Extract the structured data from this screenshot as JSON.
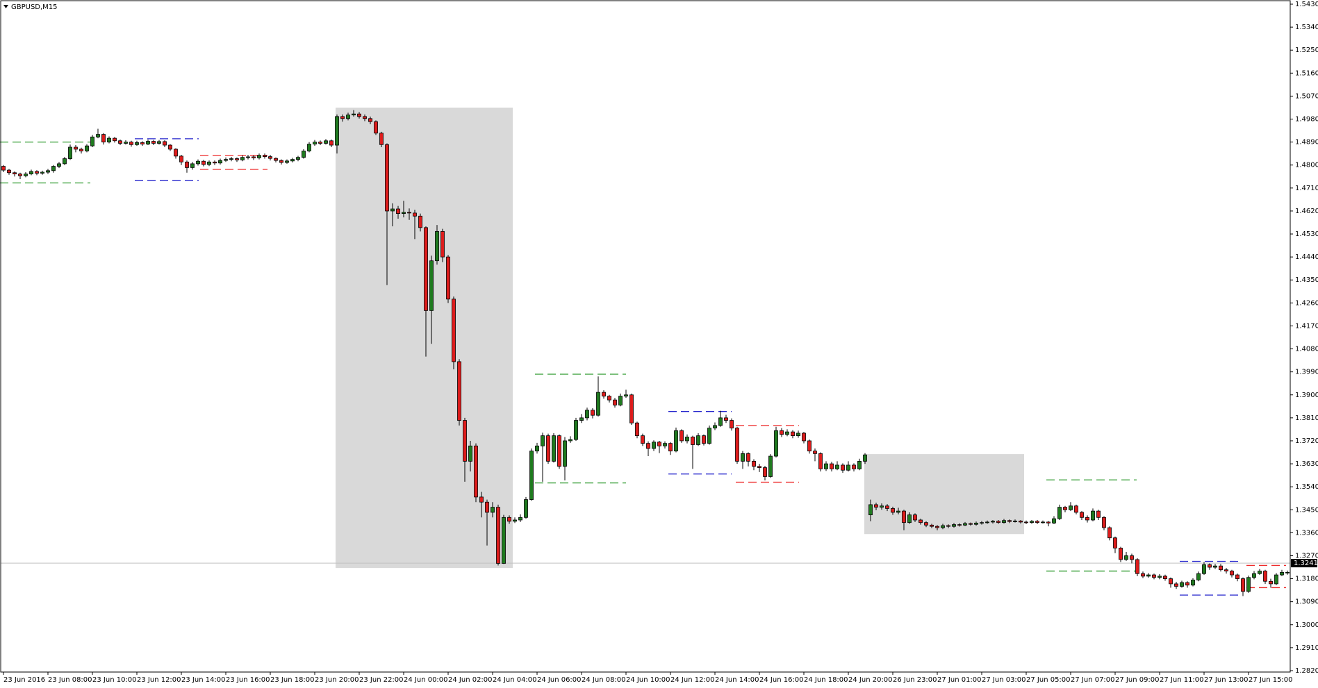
{
  "chart_data": {
    "type": "candlestick",
    "title": "GBPUSD,M15",
    "up_color": "#1f7a1f",
    "down_color": "#dd1c1c",
    "categories": [
      "23 Jun 2016",
      null,
      null,
      null,
      null,
      null,
      null,
      null,
      "23 Jun 08:00",
      null,
      null,
      null,
      null,
      null,
      null,
      null,
      "23 Jun 10:00",
      null,
      null,
      null,
      null,
      null,
      null,
      null,
      "23 Jun 12:00",
      null,
      null,
      null,
      null,
      null,
      null,
      null,
      "23 Jun 14:00",
      null,
      null,
      null,
      null,
      null,
      null,
      null,
      "23 Jun 16:00",
      null,
      null,
      null,
      null,
      null,
      null,
      null,
      "23 Jun 18:00",
      null,
      null,
      null,
      null,
      null,
      null,
      null,
      "23 Jun 20:00",
      null,
      null,
      null,
      null,
      null,
      null,
      null,
      "23 Jun 22:00",
      null,
      null,
      null,
      null,
      null,
      null,
      null,
      "24 Jun 00:00",
      null,
      null,
      null,
      null,
      null,
      null,
      null,
      "24 Jun 02:00",
      null,
      null,
      null,
      null,
      null,
      null,
      null,
      "24 Jun 04:00",
      null,
      null,
      null,
      null,
      null,
      null,
      null,
      "24 Jun 06:00",
      null,
      null,
      null,
      null,
      null,
      null,
      null,
      "24 Jun 08:00",
      null,
      null,
      null,
      null,
      null,
      null,
      null,
      "24 Jun 10:00",
      null,
      null,
      null,
      null,
      null,
      null,
      null,
      "24 Jun 12:00",
      null,
      null,
      null,
      null,
      null,
      null,
      null,
      "24 Jun 14:00",
      null,
      null,
      null,
      null,
      null,
      null,
      null,
      "24 Jun 16:00",
      null,
      null,
      null,
      null,
      null,
      null,
      null,
      "24 Jun 18:00",
      null,
      null,
      null,
      null,
      null,
      null,
      null,
      "24 Jun 20:00",
      null,
      null,
      null,
      null,
      null,
      null,
      null,
      "26 Jun 23:00",
      null,
      null,
      null,
      null,
      null,
      null,
      null,
      "27 Jun 01:00",
      null,
      null,
      null,
      null,
      null,
      null,
      null,
      "27 Jun 03:00",
      null,
      null,
      null,
      null,
      null,
      null,
      null,
      "27 Jun 05:00",
      null,
      null,
      null,
      null,
      null,
      null,
      null,
      "27 Jun 07:00",
      null,
      null,
      null,
      null,
      null,
      null,
      null,
      "27 Jun 09:00",
      null,
      null,
      null,
      null,
      null,
      null,
      null,
      "27 Jun 11:00",
      null,
      null,
      null,
      null,
      null,
      null,
      null,
      "27 Jun 13:00",
      null,
      null,
      null,
      null,
      null,
      null,
      null,
      "27 Jun 15:00",
      null,
      null,
      null,
      null,
      null,
      null,
      null
    ],
    "open": [
      1.4795,
      1.478,
      1.477,
      1.4765,
      1.4758,
      1.4765,
      1.4775,
      1.4768,
      1.4772,
      1.4778,
      1.4795,
      1.4805,
      1.4825,
      1.487,
      1.4862,
      1.4855,
      1.4875,
      1.491,
      1.492,
      1.489,
      1.4905,
      1.4895,
      1.4885,
      1.489,
      1.488,
      1.4888,
      1.4882,
      1.4893,
      1.4885,
      1.4892,
      1.4878,
      1.4862,
      1.4835,
      1.4812,
      1.479,
      1.4805,
      1.4815,
      1.4802,
      1.4812,
      1.4808,
      1.4818,
      1.4822,
      1.4825,
      1.482,
      1.483,
      1.4832,
      1.4828,
      1.4838,
      1.4833,
      1.4826,
      1.4818,
      1.481,
      1.4816,
      1.4822,
      1.483,
      1.4855,
      1.4882,
      1.489,
      1.4885,
      1.4895,
      1.4878,
      1.499,
      1.4982,
      1.4996,
      1.5,
      1.499,
      1.4982,
      1.497,
      1.4925,
      1.488,
      1.462,
      1.4628,
      1.461,
      1.4615,
      1.4612,
      1.46,
      1.4555,
      1.423,
      1.4425,
      1.454,
      1.444,
      1.4275,
      1.403,
      1.38,
      1.364,
      1.37,
      1.35,
      1.348,
      1.344,
      1.346,
      1.324,
      1.342,
      1.3405,
      1.341,
      1.342,
      1.349,
      1.368,
      1.37,
      1.374,
      1.364,
      1.374,
      1.362,
      1.372,
      1.3725,
      1.38,
      1.381,
      1.384,
      1.382,
      1.391,
      1.3895,
      1.388,
      1.386,
      1.3895,
      1.39,
      1.379,
      1.374,
      1.371,
      1.369,
      1.3715,
      1.37,
      1.371,
      1.368,
      1.376,
      1.372,
      1.3735,
      1.3705,
      1.374,
      1.371,
      1.377,
      1.378,
      1.381,
      1.38,
      1.377,
      1.364,
      1.367,
      1.364,
      1.362,
      1.3615,
      1.358,
      1.366,
      1.376,
      1.3745,
      1.3755,
      1.374,
      1.375,
      1.372,
      1.368,
      1.367,
      1.361,
      1.363,
      1.361,
      1.3625,
      1.3605,
      1.3625,
      1.361,
      1.364,
      1.343,
      1.347,
      1.346,
      1.3465,
      1.3455,
      1.344,
      1.3445,
      1.34,
      1.343,
      1.341,
      1.34,
      1.339,
      1.3385,
      1.338,
      1.3388,
      1.3385,
      1.3392,
      1.339,
      1.3396,
      1.3393,
      1.3398,
      1.34,
      1.3402,
      1.3405,
      1.34,
      1.3408,
      1.3404,
      1.3406,
      1.3402,
      1.34,
      1.3405,
      1.34,
      1.3402,
      1.3398,
      1.3415,
      1.346,
      1.345,
      1.3465,
      1.344,
      1.342,
      1.341,
      1.3445,
      1.342,
      1.338,
      1.334,
      1.33,
      1.3255,
      1.327,
      1.3255,
      1.32,
      1.319,
      1.3195,
      1.3185,
      1.319,
      1.318,
      1.316,
      1.315,
      1.3165,
      1.3155,
      1.3175,
      1.32,
      1.3235,
      1.3225,
      1.323,
      1.3215,
      1.321,
      1.3195,
      1.318,
      1.313,
      1.3185,
      1.32,
      1.321,
      1.317,
      1.316,
      1.3195,
      1.3205
    ],
    "high": [
      1.48,
      1.4785,
      1.4775,
      1.477,
      1.4772,
      1.4782,
      1.478,
      1.4778,
      1.4785,
      1.48,
      1.4812,
      1.4832,
      1.488,
      1.4878,
      1.4868,
      1.4882,
      1.4918,
      1.4942,
      1.4925,
      1.4912,
      1.491,
      1.49,
      1.4897,
      1.4895,
      1.4895,
      1.4893,
      1.49,
      1.4898,
      1.4898,
      1.4897,
      1.4882,
      1.4866,
      1.484,
      1.4818,
      1.4812,
      1.4822,
      1.482,
      1.4818,
      1.4818,
      1.4825,
      1.483,
      1.4832,
      1.483,
      1.4838,
      1.484,
      1.4838,
      1.4845,
      1.4845,
      1.484,
      1.483,
      1.4822,
      1.4822,
      1.4828,
      1.4836,
      1.4862,
      1.489,
      1.4898,
      1.4896,
      1.4902,
      1.49,
      1.4998,
      1.4998,
      1.5005,
      1.5015,
      1.5008,
      1.4998,
      1.499,
      1.4975,
      1.493,
      1.4885,
      1.465,
      1.464,
      1.466,
      1.463,
      1.4625,
      1.461,
      1.456,
      1.4445,
      1.4565,
      1.455,
      1.4448,
      1.4285,
      1.404,
      1.381,
      1.372,
      1.371,
      1.352,
      1.349,
      1.348,
      1.347,
      1.343,
      1.3428,
      1.342,
      1.3432,
      1.35,
      1.369,
      1.3712,
      1.3752,
      1.3748,
      1.375,
      1.3745,
      1.3735,
      1.3738,
      1.381,
      1.3825,
      1.385,
      1.3848,
      1.3972,
      1.3918,
      1.39,
      1.3888,
      1.3905,
      1.392,
      1.3905,
      1.3795,
      1.3748,
      1.3718,
      1.3722,
      1.372,
      1.3718,
      1.3715,
      1.3772,
      1.3765,
      1.3745,
      1.374,
      1.375,
      1.3745,
      1.378,
      1.3792,
      1.3838,
      1.3822,
      1.3808,
      1.3775,
      1.368,
      1.3675,
      1.3648,
      1.363,
      1.3622,
      1.3668,
      1.3775,
      1.377,
      1.3765,
      1.3762,
      1.376,
      1.3755,
      1.3725,
      1.369,
      1.3675,
      1.364,
      1.3638,
      1.364,
      1.3632,
      1.364,
      1.3632,
      1.365,
      1.3672,
      1.349,
      1.3478,
      1.3475,
      1.3472,
      1.3462,
      1.3458,
      1.345,
      1.344,
      1.3436,
      1.3415,
      1.3405,
      1.3395,
      1.339,
      1.3395,
      1.3393,
      1.3398,
      1.3397,
      1.3402,
      1.34,
      1.3404,
      1.3406,
      1.3408,
      1.341,
      1.341,
      1.3414,
      1.3412,
      1.3412,
      1.341,
      1.3408,
      1.341,
      1.341,
      1.3408,
      1.3406,
      1.3425,
      1.347,
      1.3465,
      1.348,
      1.347,
      1.3445,
      1.3428,
      1.3455,
      1.345,
      1.3425,
      1.3385,
      1.3345,
      1.3305,
      1.3285,
      1.3278,
      1.326,
      1.3208,
      1.3202,
      1.32,
      1.3198,
      1.3196,
      1.3185,
      1.3168,
      1.3172,
      1.317,
      1.3182,
      1.3208,
      1.3245,
      1.324,
      1.3238,
      1.3238,
      1.3222,
      1.3215,
      1.32,
      1.3185,
      1.3192,
      1.321,
      1.3218,
      1.3215,
      1.318,
      1.3202,
      1.3215,
      1.3212
    ],
    "low": [
      1.4772,
      1.4762,
      1.4755,
      1.4745,
      1.4752,
      1.476,
      1.476,
      1.4762,
      1.4765,
      1.477,
      1.4788,
      1.48,
      1.482,
      1.485,
      1.4845,
      1.485,
      1.487,
      1.4905,
      1.488,
      1.4885,
      1.4888,
      1.4878,
      1.488,
      1.4872,
      1.4875,
      1.4875,
      1.4878,
      1.4878,
      1.488,
      1.487,
      1.4855,
      1.4825,
      1.48,
      1.477,
      1.4782,
      1.4798,
      1.4795,
      1.4796,
      1.48,
      1.4802,
      1.4812,
      1.4815,
      1.4812,
      1.4815,
      1.4822,
      1.482,
      1.4822,
      1.4825,
      1.4818,
      1.481,
      1.4802,
      1.4805,
      1.481,
      1.4815,
      1.4825,
      1.485,
      1.4875,
      1.4878,
      1.488,
      1.487,
      1.4845,
      1.497,
      1.4975,
      1.499,
      1.4982,
      1.4972,
      1.496,
      1.4918,
      1.487,
      1.433,
      1.456,
      1.459,
      1.4595,
      1.4585,
      1.451,
      1.454,
      1.405,
      1.41,
      1.441,
      1.442,
      1.426,
      1.4,
      1.378,
      1.356,
      1.36,
      1.348,
      1.342,
      1.331,
      1.342,
      1.3232,
      1.3238,
      1.3395,
      1.3398,
      1.3402,
      1.3415,
      1.3485,
      1.367,
      1.356,
      1.363,
      1.3635,
      1.361,
      1.3565,
      1.3712,
      1.372,
      1.379,
      1.38,
      1.3808,
      1.3815,
      1.3885,
      1.387,
      1.385,
      1.3855,
      1.3888,
      1.3782,
      1.373,
      1.37,
      1.366,
      1.368,
      1.3672,
      1.369,
      1.3665,
      1.3675,
      1.3712,
      1.371,
      1.361,
      1.37,
      1.3702,
      1.3705,
      1.3762,
      1.3775,
      1.379,
      1.376,
      1.363,
      1.361,
      1.362,
      1.3605,
      1.3598,
      1.3565,
      1.3575,
      1.3655,
      1.3735,
      1.3738,
      1.373,
      1.3732,
      1.371,
      1.367,
      1.364,
      1.36,
      1.3602,
      1.36,
      1.3605,
      1.3595,
      1.36,
      1.36,
      1.3605,
      1.363,
      1.3405,
      1.3448,
      1.345,
      1.3445,
      1.343,
      1.3432,
      1.337,
      1.3395,
      1.3402,
      1.3392,
      1.3382,
      1.3378,
      1.337,
      1.3374,
      1.3378,
      1.338,
      1.3384,
      1.3386,
      1.3388,
      1.3388,
      1.3392,
      1.3395,
      1.3396,
      1.3395,
      1.3396,
      1.3398,
      1.34,
      1.3396,
      1.3394,
      1.3395,
      1.3394,
      1.3396,
      1.3385,
      1.3394,
      1.341,
      1.344,
      1.3445,
      1.3432,
      1.341,
      1.34,
      1.3405,
      1.341,
      1.337,
      1.333,
      1.328,
      1.3245,
      1.325,
      1.324,
      1.319,
      1.3182,
      1.3184,
      1.3178,
      1.3178,
      1.3172,
      1.3145,
      1.314,
      1.3145,
      1.3145,
      1.315,
      1.317,
      1.3195,
      1.3215,
      1.3218,
      1.3208,
      1.32,
      1.3185,
      1.317,
      1.3112,
      1.3125,
      1.3178,
      1.3195,
      1.316,
      1.3145,
      1.3155,
      1.319,
      1.3196
    ],
    "close": [
      1.478,
      1.477,
      1.4765,
      1.4758,
      1.4765,
      1.4775,
      1.4768,
      1.4772,
      1.4778,
      1.4795,
      1.4805,
      1.4825,
      1.487,
      1.4862,
      1.4855,
      1.4875,
      1.491,
      1.492,
      1.489,
      1.4905,
      1.4895,
      1.4885,
      1.489,
      1.488,
      1.4888,
      1.4882,
      1.4893,
      1.4885,
      1.4892,
      1.4878,
      1.4862,
      1.4835,
      1.4812,
      1.479,
      1.4805,
      1.4815,
      1.4802,
      1.4812,
      1.4808,
      1.4818,
      1.4822,
      1.4825,
      1.482,
      1.483,
      1.4832,
      1.4828,
      1.4838,
      1.4833,
      1.4826,
      1.4818,
      1.481,
      1.4816,
      1.4822,
      1.483,
      1.4855,
      1.4882,
      1.489,
      1.4885,
      1.4895,
      1.4878,
      1.499,
      1.4982,
      1.4996,
      1.5,
      1.499,
      1.4982,
      1.497,
      1.4925,
      1.488,
      1.462,
      1.4628,
      1.461,
      1.4615,
      1.4612,
      1.46,
      1.4555,
      1.423,
      1.4425,
      1.454,
      1.444,
      1.4275,
      1.403,
      1.38,
      1.364,
      1.37,
      1.35,
      1.348,
      1.344,
      1.346,
      1.324,
      1.342,
      1.3405,
      1.341,
      1.342,
      1.349,
      1.368,
      1.37,
      1.374,
      1.364,
      1.374,
      1.362,
      1.372,
      1.3725,
      1.38,
      1.381,
      1.384,
      1.382,
      1.391,
      1.3895,
      1.388,
      1.386,
      1.3895,
      1.39,
      1.379,
      1.374,
      1.371,
      1.369,
      1.3715,
      1.37,
      1.371,
      1.368,
      1.376,
      1.372,
      1.3735,
      1.3705,
      1.374,
      1.371,
      1.377,
      1.378,
      1.381,
      1.38,
      1.377,
      1.364,
      1.367,
      1.364,
      1.362,
      1.3615,
      1.358,
      1.366,
      1.376,
      1.3745,
      1.3755,
      1.374,
      1.375,
      1.372,
      1.368,
      1.367,
      1.361,
      1.363,
      1.361,
      1.3625,
      1.3605,
      1.3625,
      1.361,
      1.364,
      1.3665,
      1.347,
      1.346,
      1.3465,
      1.3455,
      1.344,
      1.3445,
      1.34,
      1.343,
      1.341,
      1.34,
      1.339,
      1.3385,
      1.338,
      1.3388,
      1.3385,
      1.3392,
      1.339,
      1.3396,
      1.3393,
      1.3398,
      1.34,
      1.3402,
      1.3405,
      1.34,
      1.3408,
      1.3404,
      1.3406,
      1.3402,
      1.34,
      1.3405,
      1.34,
      1.3402,
      1.3398,
      1.3415,
      1.346,
      1.345,
      1.3465,
      1.344,
      1.342,
      1.341,
      1.3445,
      1.342,
      1.338,
      1.334,
      1.33,
      1.3255,
      1.327,
      1.3255,
      1.32,
      1.319,
      1.3195,
      1.3185,
      1.319,
      1.318,
      1.316,
      1.315,
      1.3165,
      1.3155,
      1.3175,
      1.32,
      1.3235,
      1.3225,
      1.323,
      1.3215,
      1.321,
      1.3195,
      1.318,
      1.313,
      1.3185,
      1.32,
      1.321,
      1.317,
      1.316,
      1.3195,
      1.3205,
      1.3205
    ],
    "bid": 1.3241,
    "levels": [
      {
        "color": "#2e9a2e",
        "values": [
          1.489,
          1.473
        ]
      },
      {
        "color": "#2222cc",
        "values": [
          1.4903,
          1.474
        ]
      },
      {
        "color": "#ee2a2a",
        "values": [
          1.4838,
          1.4783
        ]
      },
      {
        "color": "#2e9a2e",
        "values": [
          1.3981,
          1.3555
        ]
      },
      {
        "color": "#2222cc",
        "values": [
          1.3835,
          1.359
        ]
      },
      {
        "color": "#ee2a2a",
        "values": [
          1.378,
          1.3558
        ]
      },
      {
        "color": "#2e9a2e",
        "values": [
          1.3567,
          1.321
        ]
      },
      {
        "color": "#2222cc",
        "values": [
          1.3248,
          1.3116
        ]
      },
      {
        "color": "#ee2a2a",
        "values": [
          1.3232,
          1.3145
        ]
      }
    ],
    "boxes": [
      {
        "color": "#d9d9d9",
        "values": [
          1.5025,
          1.3222
        ]
      },
      {
        "color": "#d9d9d9",
        "values": [
          1.3668,
          1.3355
        ]
      }
    ],
    "ylim": [
      1.282,
      1.543
    ],
    "yticks": [
      {
        "value": 1.543,
        "label": "1.5430"
      },
      {
        "value": 1.534,
        "label": "1.5340"
      },
      {
        "value": 1.525,
        "label": "1.5250"
      },
      {
        "value": 1.516,
        "label": "1.5160"
      },
      {
        "value": 1.507,
        "label": "1.5070"
      },
      {
        "value": 1.498,
        "label": "1.4980"
      },
      {
        "value": 1.489,
        "label": "1.4890"
      },
      {
        "value": 1.48,
        "label": "1.4800"
      },
      {
        "value": 1.471,
        "label": "1.4710"
      },
      {
        "value": 1.462,
        "label": "1.4620"
      },
      {
        "value": 1.453,
        "label": "1.4530"
      },
      {
        "value": 1.444,
        "label": "1.4440"
      },
      {
        "value": 1.435,
        "label": "1.4350"
      },
      {
        "value": 1.426,
        "label": "1.4260"
      },
      {
        "value": 1.417,
        "label": "1.4170"
      },
      {
        "value": 1.408,
        "label": "1.4080"
      },
      {
        "value": 1.399,
        "label": "1.3990"
      },
      {
        "value": 1.39,
        "label": "1.3900"
      },
      {
        "value": 1.381,
        "label": "1.3810"
      },
      {
        "value": 1.372,
        "label": "1.3720"
      },
      {
        "value": 1.363,
        "label": "1.3630"
      },
      {
        "value": 1.354,
        "label": "1.3540"
      },
      {
        "value": 1.345,
        "label": "1.3450"
      },
      {
        "value": 1.336,
        "label": "1.3360"
      },
      {
        "value": 1.327,
        "label": "1.3270"
      },
      {
        "value": 1.318,
        "label": "1.3180"
      },
      {
        "value": 1.309,
        "label": "1.3090"
      },
      {
        "value": 1.3,
        "label": "1.3000"
      },
      {
        "value": 1.291,
        "label": "1.2910"
      },
      {
        "value": 1.282,
        "label": "1.2820"
      }
    ]
  }
}
